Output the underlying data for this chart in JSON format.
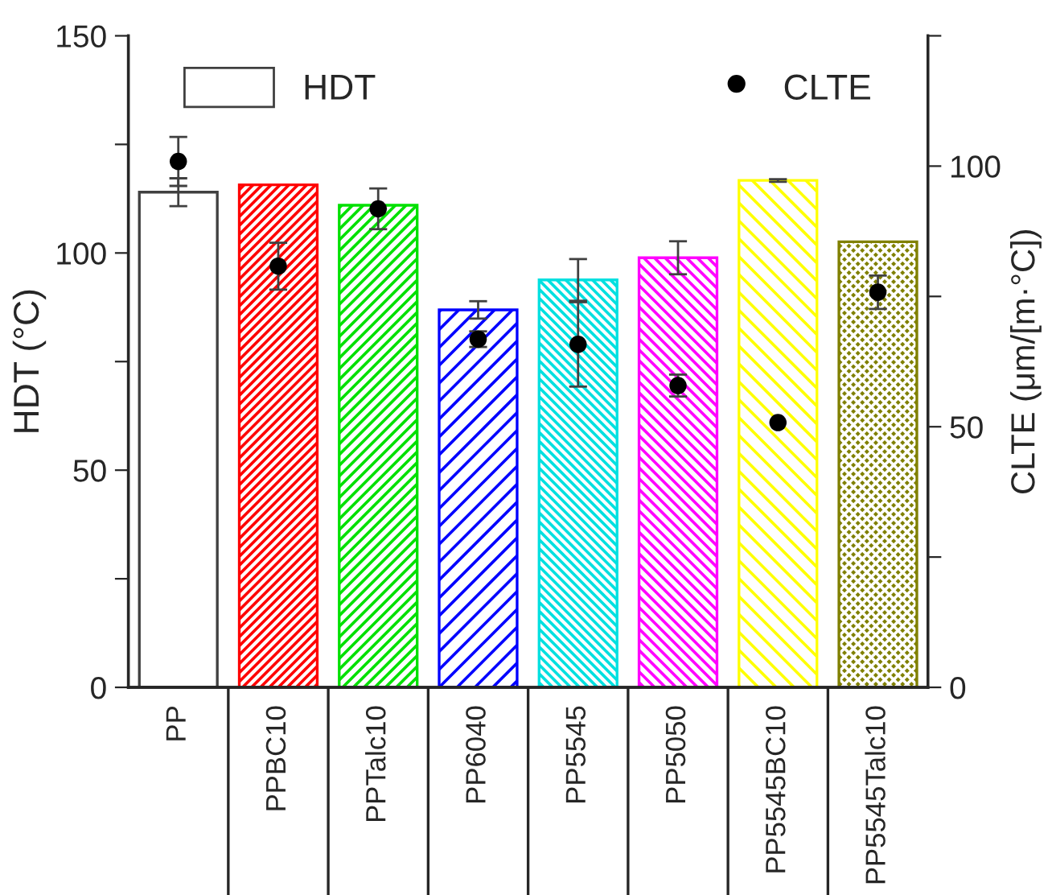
{
  "chart_data": {
    "type": "bar",
    "categories": [
      "PP",
      "PPBC10",
      "PPTalc10",
      "PP6040",
      "PP5545",
      "PP5050",
      "PP5545BC10",
      "PP5545Talc10"
    ],
    "series": [
      {
        "name": "HDT",
        "colors": [
          "#ffffff",
          "#ff0000",
          "#00e000",
          "#0000ff",
          "#00e0e0",
          "#ff00ff",
          "#ffff00",
          "#808000"
        ],
        "values": [
          114.0,
          115.7,
          111.0,
          86.9,
          93.8,
          98.9,
          116.7,
          102.6
        ],
        "errors": [
          3.2,
          null,
          null,
          2.0,
          4.8,
          3.8,
          0.3,
          null
        ]
      },
      {
        "name": "CLTE",
        "type": "scatter",
        "axis": "y2",
        "color": "#000000",
        "x": [
          "PP",
          "PPBC10",
          "PPTalc10",
          "PP6040",
          "PP5545",
          "PP5050",
          "PP5545BC10",
          "PP5545Talc10"
        ],
        "values": [
          100.9,
          80.8,
          91.8,
          66.8,
          65.8,
          57.9,
          50.8,
          75.8
        ],
        "errors": [
          4.7,
          4.5,
          3.9,
          1.5,
          8.1,
          2.1,
          null,
          3.2
        ]
      }
    ],
    "ylabel": "HDT (°C)",
    "y2label": "CLTE (μm/[m·°C])",
    "ylim": [
      0,
      150
    ],
    "yticks": [
      0,
      {
        "value": 25,
        "label": null
      },
      50,
      {
        "value": 75,
        "label": null
      },
      100,
      {
        "value": 125,
        "label": null
      },
      150
    ],
    "y2lim": [
      0,
      125
    ],
    "y2ticks": [
      0,
      {
        "value": 25,
        "label": null
      },
      50,
      {
        "value": 75,
        "label": null
      },
      100,
      {
        "value": 125,
        "label": null
      }
    ],
    "legend": "top",
    "grid": false,
    "marker": "circle"
  }
}
